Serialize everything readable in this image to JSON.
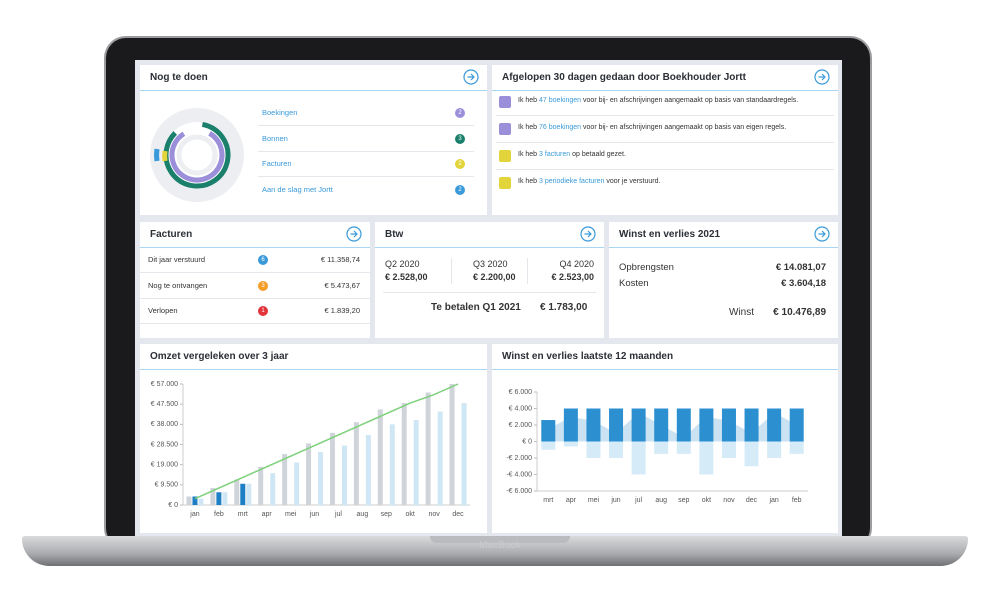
{
  "device_label": "MacBook",
  "todo": {
    "title": "Nog te doen",
    "items": [
      {
        "label": "Boekingen",
        "count": 2,
        "color": "#9b8fd9"
      },
      {
        "label": "Bonnen",
        "count": 3,
        "color": "#1a7f6b"
      },
      {
        "label": "Facturen",
        "count": 2,
        "color": "#e3d43c"
      },
      {
        "label": "Aan de slag met Jortt",
        "count": 2,
        "color": "#3a9ad9"
      }
    ]
  },
  "activity": {
    "title": "Afgelopen 30 dagen gedaan door Boekhouder Jortt",
    "items": [
      {
        "prefix": "Ik heb",
        "link": "47 boekingen",
        "suffix": "voor bij- en afschrijvingen aangemaakt op basis van standaardregels.",
        "color": "#9b8fd9"
      },
      {
        "prefix": "Ik heb",
        "link": "76 boekingen",
        "suffix": "voor bij- en afschrijvingen aangemaakt op basis van eigen regels.",
        "color": "#9b8fd9"
      },
      {
        "prefix": "Ik heb",
        "link": "3 facturen",
        "suffix": "op betaald gezet.",
        "color": "#e3d43c"
      },
      {
        "prefix": "Ik heb",
        "link": "3 periodieke facturen",
        "suffix": "voor je verstuurd.",
        "color": "#e3d43c"
      }
    ]
  },
  "invoices": {
    "title": "Facturen",
    "rows": [
      {
        "label": "Dit jaar verstuurd",
        "count": 6,
        "color": "#3a9ad9",
        "amount": "€ 11.358,74"
      },
      {
        "label": "Nog te ontvangen",
        "count": 3,
        "color": "#f39c26",
        "amount": "€ 5.473,67"
      },
      {
        "label": "Verlopen",
        "count": 1,
        "color": "#e2343a",
        "amount": "€ 1.839,20"
      }
    ]
  },
  "vat": {
    "title": "Btw",
    "quarters": [
      {
        "label": "Q2 2020",
        "amount": "€ 2.528,00"
      },
      {
        "label": "Q3 2020",
        "amount": "€ 2.200,00"
      },
      {
        "label": "Q4 2020",
        "amount": "€ 2.523,00"
      }
    ],
    "due_label": "Te betalen Q1 2021",
    "due_amount": "€ 1.783,00"
  },
  "pnl": {
    "title": "Winst en verlies 2021",
    "rows": [
      {
        "label": "Opbrengsten",
        "amount": "€ 14.081,07"
      },
      {
        "label": "Kosten",
        "amount": "€ 3.604,18"
      }
    ],
    "profit_label": "Winst",
    "profit_amount": "€ 10.476,89"
  },
  "chart_data": [
    {
      "type": "bar",
      "title": "Omzet vergeleken over 3 jaar",
      "categories": [
        "jan",
        "feb",
        "mrt",
        "apr",
        "mei",
        "jun",
        "jul",
        "aug",
        "sep",
        "okt",
        "nov",
        "dec"
      ],
      "series": [
        {
          "color": "#cfd4da",
          "values": [
            4000,
            8000,
            12000,
            18000,
            24000,
            29000,
            34000,
            39000,
            45000,
            48000,
            53000,
            57000
          ]
        },
        {
          "color": "#1f7fc4",
          "values": [
            4000,
            6000,
            10000,
            null,
            null,
            null,
            null,
            null,
            null,
            null,
            null,
            null
          ]
        },
        {
          "color": "#cfe6f5",
          "values": [
            3000,
            6000,
            10000,
            15000,
            20000,
            25000,
            28000,
            33000,
            38000,
            40000,
            44000,
            48000
          ]
        },
        {
          "color": "#7dd07a",
          "style": "line",
          "values": [
            3000,
            8000,
            13000,
            18000,
            23000,
            28000,
            33000,
            38000,
            43000,
            48000,
            52000,
            57000
          ]
        }
      ],
      "ylim": [
        0,
        57000
      ],
      "yticks": [
        {
          "value": 0,
          "label": "€ 0"
        },
        {
          "value": 9500,
          "label": "€ 9.500"
        },
        {
          "value": 19000,
          "label": "€ 19.000"
        },
        {
          "value": 28500,
          "label": "€ 28.500"
        },
        {
          "value": 38000,
          "label": "€ 38.000"
        },
        {
          "value": 47500,
          "label": "€ 47.500"
        },
        {
          "value": 57000,
          "label": "€ 57.000"
        }
      ],
      "grid": false
    },
    {
      "type": "bar",
      "title": "Winst en verlies laatste 12 maanden",
      "categories": [
        "mrt",
        "apr",
        "mei",
        "jun",
        "jul",
        "aug",
        "sep",
        "okt",
        "nov",
        "dec",
        "jan",
        "feb"
      ],
      "series": [
        {
          "color": "#a9cfe9",
          "style": "area",
          "values": [
            1500,
            3000,
            2500,
            1000,
            3500,
            2000,
            500,
            3000,
            2500,
            1000,
            3500,
            2000
          ]
        },
        {
          "color": "#2b8fd0",
          "values": [
            2600,
            4000,
            4000,
            4000,
            4000,
            4000,
            4000,
            4000,
            4000,
            4000,
            4000,
            4000
          ]
        },
        {
          "color": "#d6ebf8",
          "values": [
            -1000,
            -600,
            -2000,
            -2000,
            -4000,
            -1500,
            -1500,
            -4000,
            -2000,
            -3000,
            -2000,
            -1500
          ]
        }
      ],
      "ylim": [
        -6000,
        6000
      ],
      "yticks": [
        {
          "value": 6000,
          "label": "€ 6.000"
        },
        {
          "value": 4000,
          "label": "€ 4.000"
        },
        {
          "value": 2000,
          "label": "€ 2.000"
        },
        {
          "value": 0,
          "label": "€ 0"
        },
        {
          "value": -2000,
          "label": "-€ 2.000"
        },
        {
          "value": -4000,
          "label": "-€ 4.000"
        },
        {
          "value": -6000,
          "label": "-€ 6.000"
        }
      ],
      "grid": false
    }
  ]
}
